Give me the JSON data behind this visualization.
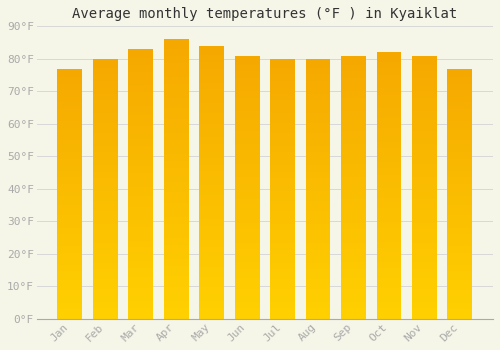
{
  "months": [
    "Jan",
    "Feb",
    "Mar",
    "Apr",
    "May",
    "Jun",
    "Jul",
    "Aug",
    "Sep",
    "Oct",
    "Nov",
    "Dec"
  ],
  "values": [
    77,
    80,
    83,
    86,
    84,
    81,
    80,
    80,
    81,
    82,
    81,
    77
  ],
  "title": "Average monthly temperatures (°F ) in Kyaiklat",
  "ylim": [
    0,
    90
  ],
  "yticks": [
    0,
    10,
    20,
    30,
    40,
    50,
    60,
    70,
    80,
    90
  ],
  "ytick_labels": [
    "0°F",
    "10°F",
    "20°F",
    "30°F",
    "40°F",
    "50°F",
    "60°F",
    "70°F",
    "80°F",
    "90°F"
  ],
  "background_color": "#f5f5e8",
  "grid_color": "#d8d8d8",
  "bar_color_bottom": "#FFD000",
  "bar_color_top": "#F5A800",
  "title_fontsize": 10,
  "tick_fontsize": 8,
  "bar_width": 0.7
}
